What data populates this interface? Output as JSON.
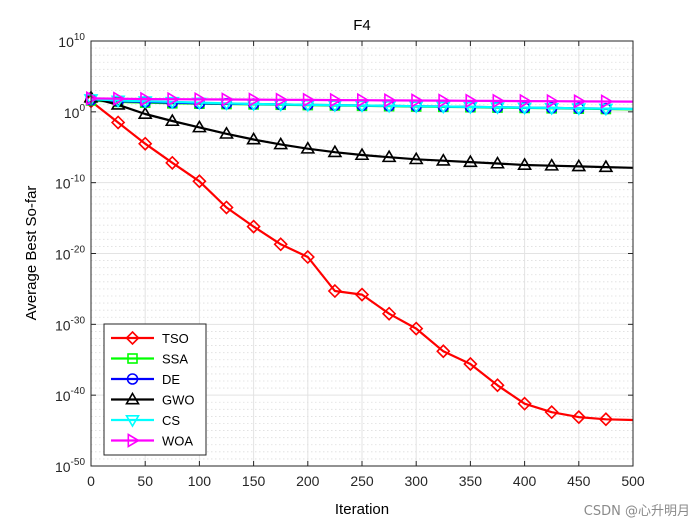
{
  "chart_data": {
    "type": "line",
    "title": "F4",
    "xlabel": "Iteration",
    "ylabel": "Average Best So-far",
    "xlim": [
      0,
      500
    ],
    "ylim_log10": [
      -50,
      10
    ],
    "yscale": "log",
    "x_ticks": [
      0,
      50,
      100,
      150,
      200,
      250,
      300,
      350,
      400,
      450,
      500
    ],
    "y_tick_exponents": [
      -50,
      -40,
      -30,
      -20,
      -10,
      0,
      10
    ],
    "grid": true,
    "legend_position": "bottom-left",
    "series": [
      {
        "name": "TSO",
        "color": "#ff0000",
        "marker": "diamond",
        "x": [
          0,
          25,
          50,
          75,
          100,
          125,
          150,
          175,
          200,
          225,
          250,
          275,
          300,
          325,
          350,
          375,
          400,
          425,
          450,
          475,
          500
        ],
        "log10_y": [
          1.5,
          -1.5,
          -4.5,
          -7.2,
          -9.8,
          -13.5,
          -16.2,
          -18.7,
          -20.5,
          -25.3,
          -25.8,
          -28.5,
          -30.6,
          -33.8,
          -35.6,
          -38.6,
          -41.2,
          -42.4,
          -43.1,
          -43.4,
          -43.5
        ]
      },
      {
        "name": "SSA",
        "color": "#00ff00",
        "marker": "square",
        "x": [
          0,
          25,
          50,
          75,
          100,
          125,
          150,
          175,
          200,
          225,
          250,
          275,
          300,
          325,
          350,
          375,
          400,
          425,
          450,
          475,
          500
        ],
        "log10_y": [
          1.6,
          1.4,
          1.3,
          1.2,
          1.15,
          1.1,
          1.05,
          1.0,
          0.95,
          0.9,
          0.85,
          0.8,
          0.75,
          0.7,
          0.65,
          0.6,
          0.55,
          0.5,
          0.45,
          0.4,
          0.35
        ]
      },
      {
        "name": "DE",
        "color": "#0000ff",
        "marker": "circle",
        "x": [
          0,
          25,
          50,
          75,
          100,
          125,
          150,
          175,
          200,
          225,
          250,
          275,
          300,
          325,
          350,
          375,
          400,
          425,
          450,
          475,
          500
        ],
        "log10_y": [
          1.7,
          1.5,
          1.4,
          1.3,
          1.2,
          1.15,
          1.1,
          1.05,
          1.0,
          0.95,
          0.9,
          0.85,
          0.8,
          0.75,
          0.7,
          0.65,
          0.6,
          0.55,
          0.5,
          0.45,
          0.4
        ]
      },
      {
        "name": "GWO",
        "color": "#000000",
        "marker": "triangle-up",
        "x": [
          0,
          25,
          50,
          75,
          100,
          125,
          150,
          175,
          200,
          225,
          250,
          275,
          300,
          325,
          350,
          375,
          400,
          425,
          450,
          475,
          500
        ],
        "log10_y": [
          2.0,
          1.0,
          -0.3,
          -1.3,
          -2.2,
          -3.1,
          -3.9,
          -4.6,
          -5.2,
          -5.7,
          -6.1,
          -6.4,
          -6.7,
          -6.9,
          -7.1,
          -7.3,
          -7.5,
          -7.6,
          -7.7,
          -7.8,
          -7.9
        ]
      },
      {
        "name": "CS",
        "color": "#00ffff",
        "marker": "triangle-down",
        "x": [
          0,
          25,
          50,
          75,
          100,
          125,
          150,
          175,
          200,
          225,
          250,
          275,
          300,
          325,
          350,
          375,
          400,
          425,
          450,
          475,
          500
        ],
        "log10_y": [
          1.8,
          1.6,
          1.5,
          1.4,
          1.3,
          1.2,
          1.1,
          1.05,
          1.0,
          0.95,
          0.9,
          0.85,
          0.8,
          0.75,
          0.7,
          0.65,
          0.6,
          0.55,
          0.5,
          0.45,
          0.4
        ]
      },
      {
        "name": "WOA",
        "color": "#ff00ff",
        "marker": "triangle-right",
        "x": [
          0,
          25,
          50,
          75,
          100,
          125,
          150,
          175,
          200,
          225,
          250,
          275,
          300,
          325,
          350,
          375,
          400,
          425,
          450,
          475,
          500
        ],
        "log10_y": [
          1.9,
          1.85,
          1.8,
          1.78,
          1.76,
          1.74,
          1.72,
          1.7,
          1.68,
          1.66,
          1.64,
          1.62,
          1.6,
          1.58,
          1.56,
          1.54,
          1.52,
          1.5,
          1.48,
          1.46,
          1.45
        ]
      }
    ]
  },
  "watermark": "CSDN @心升明月"
}
